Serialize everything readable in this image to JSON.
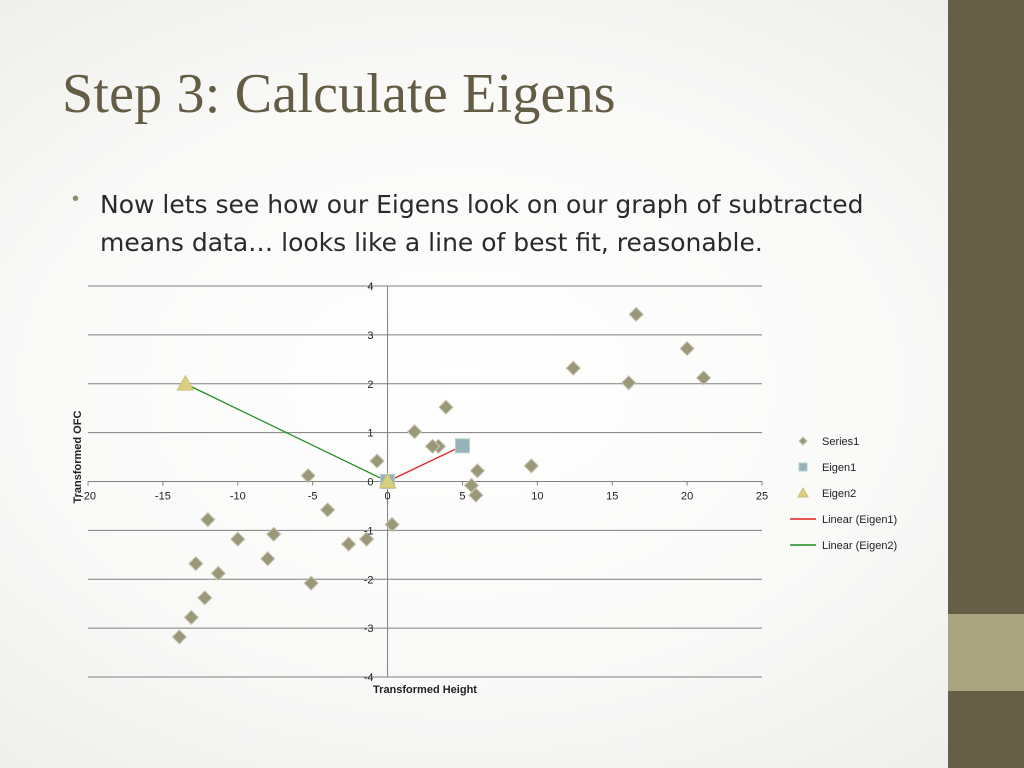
{
  "slide": {
    "title": "Step 3: Calculate Eigens",
    "bullet": "Now lets see how our Eigens look on our graph of subtracted means data… looks like a line of best fit, reasonable.",
    "colors": {
      "title": "#645d45",
      "sidebar": "#675e47",
      "sidebar_accent": "#a9a480"
    }
  },
  "chart_data": {
    "type": "scatter",
    "xlabel": "Transformed Height",
    "ylabel": "Transformed OFC",
    "xlim": [
      -20,
      25
    ],
    "ylim": [
      -4,
      4
    ],
    "x_ticks": [
      -20,
      -15,
      -10,
      -5,
      0,
      5,
      10,
      15,
      20,
      25
    ],
    "y_ticks": [
      -4,
      -3,
      -2,
      -1,
      0,
      1,
      2,
      3,
      4
    ],
    "x_tick_labels": [
      "-20",
      "-15",
      "-10",
      "-5",
      "0",
      "5",
      "10",
      "15",
      "20",
      "25"
    ],
    "y_tick_labels": [
      "-4",
      "-3",
      "-2",
      "-1",
      "0",
      "1",
      "2",
      "3",
      "4"
    ],
    "grid": "horizontal",
    "legend_position": "right",
    "series": [
      {
        "name": "Series1",
        "marker": "diamond",
        "color": "#9a9878",
        "points": [
          [
            16.6,
            3.42
          ],
          [
            20.0,
            2.72
          ],
          [
            21.1,
            2.12
          ],
          [
            12.4,
            2.32
          ],
          [
            16.1,
            2.02
          ],
          [
            3.9,
            1.52
          ],
          [
            1.8,
            1.02
          ],
          [
            3.4,
            0.72
          ],
          [
            3.0,
            0.72
          ],
          [
            9.6,
            0.32
          ],
          [
            6.0,
            0.22
          ],
          [
            5.6,
            -0.08
          ],
          [
            5.9,
            -0.28
          ],
          [
            -0.7,
            0.42
          ],
          [
            -5.3,
            0.12
          ],
          [
            -4.0,
            -0.58
          ],
          [
            0.3,
            -0.88
          ],
          [
            -1.4,
            -1.18
          ],
          [
            -2.6,
            -1.28
          ],
          [
            -7.6,
            -1.08
          ],
          [
            -10.0,
            -1.18
          ],
          [
            -12.0,
            -0.78
          ],
          [
            -12.8,
            -1.68
          ],
          [
            -11.3,
            -1.88
          ],
          [
            -8.0,
            -1.58
          ],
          [
            -5.1,
            -2.08
          ],
          [
            -12.2,
            -2.38
          ],
          [
            -13.1,
            -2.78
          ],
          [
            -13.9,
            -3.18
          ]
        ]
      },
      {
        "name": "Eigen1",
        "marker": "square",
        "color": "#95b3b8",
        "points": [
          [
            0,
            0
          ],
          [
            5.0,
            0.73
          ]
        ]
      },
      {
        "name": "Eigen2",
        "marker": "triangle",
        "color": "#d9cf7c",
        "points": [
          [
            0,
            0
          ],
          [
            -13.5,
            2.0
          ]
        ]
      },
      {
        "name": "Linear (Eigen1)",
        "marker": "line",
        "color": "#e2231a",
        "points": [
          [
            0,
            0
          ],
          [
            5.0,
            0.73
          ]
        ]
      },
      {
        "name": "Linear (Eigen2)",
        "marker": "line",
        "color": "#1f8c1f",
        "points": [
          [
            0,
            0
          ],
          [
            -13.5,
            2.0
          ]
        ]
      }
    ]
  }
}
